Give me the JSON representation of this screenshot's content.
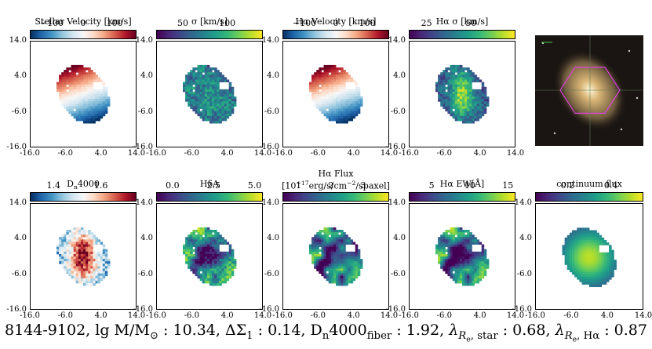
{
  "footer": {
    "plate": "8144-9102",
    "mass_label": "lg M/M",
    "mass_value": "10.34",
    "dsigma_label": "ΔΣ",
    "dsigma_value": "0.14",
    "d4000_label": "D",
    "d4000_value": "1.92",
    "lam_star_label": "λ",
    "lam_star_value": "0.68",
    "lam_ha_label": "λ",
    "lam_ha_value": "0.87"
  },
  "axis_ticks": {
    "y": [
      "14.0",
      "4.0",
      "-6.0",
      "-16.0"
    ],
    "x": [
      "-16.0",
      "-6.0",
      "4.0",
      "14.0"
    ]
  },
  "colors": {
    "cmap_rdbu": [
      "#053061",
      "#2166ac",
      "#4393c3",
      "#92c5de",
      "#d1e5f0",
      "#f7f7f7",
      "#fddbc7",
      "#f4a582",
      "#d6604d",
      "#b2182b",
      "#67001f"
    ],
    "cmap_viridis": [
      "#440154",
      "#482878",
      "#3e4989",
      "#31688e",
      "#26828e",
      "#1f9e89",
      "#35b779",
      "#6ece58",
      "#b5de2b",
      "#fde725"
    ],
    "image_bg": "#1a1512"
  },
  "chart_data": [
    {
      "type": "heatmap",
      "title": "Stellar Velocity [km/s]",
      "cmap": "RdBu_r",
      "cbar_ticks": [
        "−100",
        "0",
        "100"
      ],
      "cbar_range": [
        -170,
        170
      ],
      "map": "velocity"
    },
    {
      "type": "heatmap",
      "title": "σ [km/s]",
      "cmap": "viridis",
      "cbar_ticks": [
        "50",
        "100"
      ],
      "cbar_range": [
        20,
        140
      ],
      "map": "sigma"
    },
    {
      "type": "heatmap",
      "title": "Hα Velocity [km/s]",
      "cmap": "RdBu_r",
      "cbar_ticks": [
        "−100",
        "0",
        "100"
      ],
      "cbar_range": [
        -170,
        170
      ],
      "map": "velocity"
    },
    {
      "type": "heatmap",
      "title": "Hα σ [km/s]",
      "cmap": "viridis",
      "cbar_ticks": [
        "25",
        "50"
      ],
      "cbar_range": [
        15,
        75
      ],
      "map": "hasigma"
    },
    {
      "type": "image",
      "title": "SDSS image"
    },
    {
      "type": "heatmap",
      "title": "D",
      "cmap": "RdBu_r",
      "cbar_ticks": [
        "1.4",
        "1.6"
      ],
      "cbar_range": [
        1.3,
        1.75
      ],
      "map": "d4000"
    },
    {
      "type": "heatmap",
      "title": "HδA",
      "cmap": "viridis",
      "cbar_ticks": [
        "0.0",
        "2.5",
        "5.0"
      ],
      "cbar_range": [
        -1,
        5.5
      ],
      "map": "hdelta"
    },
    {
      "type": "heatmap",
      "title": "Hα Flux",
      "subtitle": "[10",
      "cmap": "viridis",
      "cbar_ticks": [
        "1",
        "2",
        "3"
      ],
      "cbar_range": [
        0.5,
        3.8
      ],
      "map": "haflux"
    },
    {
      "type": "heatmap",
      "title": "Hα EW[Å]",
      "cmap": "viridis",
      "cbar_ticks": [
        "5",
        "10",
        "15"
      ],
      "cbar_range": [
        2,
        16
      ],
      "map": "haew"
    },
    {
      "type": "heatmap",
      "title": "continuum flux",
      "cmap": "viridis",
      "cbar_ticks": [
        "0.2",
        "0.4"
      ],
      "cbar_range": [
        0.05,
        0.55
      ],
      "map": "cont"
    }
  ]
}
